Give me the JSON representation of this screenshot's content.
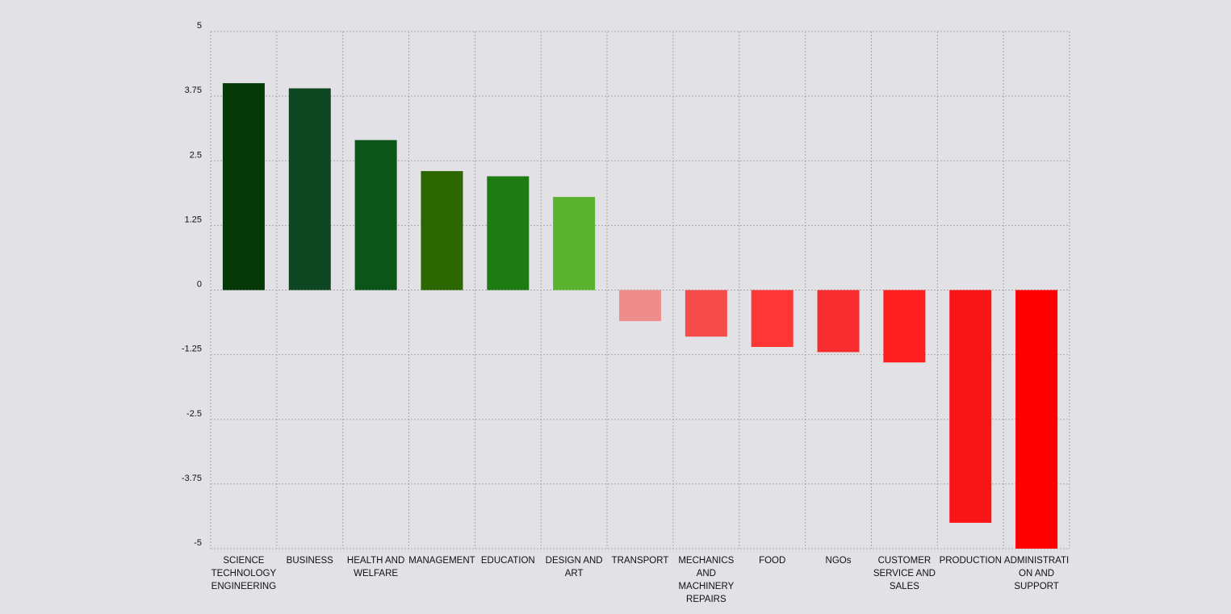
{
  "chart_data": {
    "type": "bar",
    "title": "",
    "xlabel": "",
    "ylabel": "",
    "ylim": [
      -5,
      5
    ],
    "yticks": [
      "5",
      "3.75",
      "2.5",
      "1.25",
      "0",
      "-1.25",
      "-2.5",
      "-3.75",
      "-5"
    ],
    "ytick_values": [
      5,
      3.75,
      2.5,
      1.25,
      0,
      -1.25,
      -2.5,
      -3.75,
      -5
    ],
    "grid": true,
    "legend": "none",
    "categories": [
      [
        "SCIENCE",
        "TECHNOLOGY",
        "ENGINEERING"
      ],
      [
        "BUSINESS"
      ],
      [
        "HEALTH AND",
        "WELFARE"
      ],
      [
        "MANAGEMENT"
      ],
      [
        "EDUCATION"
      ],
      [
        "DESIGN AND",
        "ART"
      ],
      [
        "TRANSPORT"
      ],
      [
        "MECHANICS",
        "AND",
        "MACHINERY",
        "REPAIRS"
      ],
      [
        "FOOD"
      ],
      [
        "NGOs"
      ],
      [
        "CUSTOMER",
        "SERVICE AND",
        "SALES"
      ],
      [
        "PRODUCTION"
      ],
      [
        "ADMINISTRATI",
        "ON AND",
        "SUPPORT"
      ]
    ],
    "values": [
      4.0,
      3.9,
      2.9,
      2.3,
      2.2,
      1.8,
      -0.6,
      -0.9,
      -1.1,
      -1.2,
      -1.4,
      -4.5,
      -5.0
    ],
    "colors": [
      "#053a08",
      "#0d4620",
      "#0a5517",
      "#2b6600",
      "#1e7b14",
      "#5ab22f",
      "#ef8d8d",
      "#f74b4b",
      "#ff3636",
      "#f72d2d",
      "#ff1f1f",
      "#f91515",
      "#ff0000"
    ]
  }
}
